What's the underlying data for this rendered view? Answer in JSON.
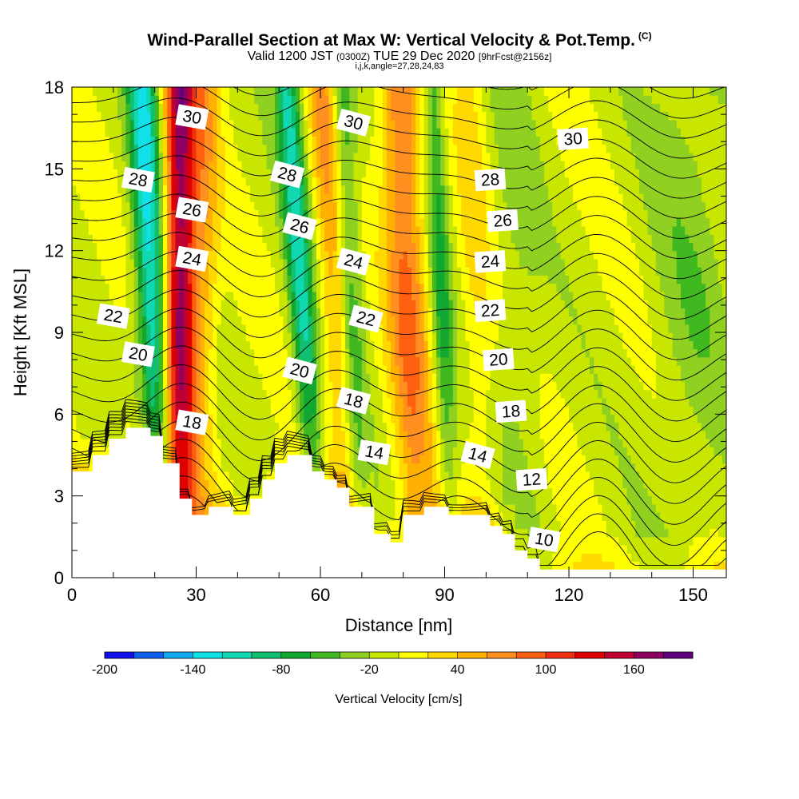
{
  "header": {
    "title": "Wind-Parallel Section at Max W: Vertical Velocity & Pot.Temp.",
    "copyright": "(C)",
    "valid_prefix": "Valid 1200 JST",
    "valid_utc": "(0300Z)",
    "valid_date": "TUE 29 Dec 2020",
    "forecast": "[9hrFcst@2156z]",
    "indices": "i,j,k,angle=27,28,24,83"
  },
  "chart_data": {
    "type": "heatmap",
    "xlabel": "Distance [nm]",
    "ylabel": "Height [Kft MSL]",
    "xlim": [
      0,
      158
    ],
    "ylim": [
      0,
      18
    ],
    "x_ticks": [
      0,
      30,
      60,
      90,
      120,
      150
    ],
    "y_ticks": [
      0,
      3,
      6,
      9,
      12,
      15,
      18
    ],
    "colorbar": {
      "title": "Vertical Velocity [cm/s]",
      "range": [
        -200,
        200
      ],
      "step": 20,
      "tick_labels": [
        "-200",
        "-140",
        "-80",
        "-20",
        "40",
        "100",
        "160"
      ],
      "tick_values": [
        -200,
        -140,
        -80,
        -20,
        40,
        100,
        160
      ],
      "colors": [
        "#1010f0",
        "#1060f0",
        "#10a8f0",
        "#10e0e8",
        "#10d8b0",
        "#10c070",
        "#10a830",
        "#40b820",
        "#90d020",
        "#c8e600",
        "#ffff00",
        "#ffd800",
        "#ffb000",
        "#ff9020",
        "#ff6010",
        "#f03010",
        "#e00000",
        "#c00030",
        "#900060",
        "#600080"
      ]
    },
    "terrain_profile": [
      [
        0,
        3.9
      ],
      [
        5,
        3.9
      ],
      [
        5,
        4.5
      ],
      [
        9,
        4.5
      ],
      [
        9,
        5.1
      ],
      [
        13,
        5.1
      ],
      [
        13,
        5.5
      ],
      [
        19,
        5.5
      ],
      [
        19,
        5.2
      ],
      [
        22,
        5.2
      ],
      [
        22,
        4.2
      ],
      [
        26,
        4.2
      ],
      [
        26,
        2.9
      ],
      [
        29,
        2.9
      ],
      [
        29,
        2.3
      ],
      [
        33,
        2.3
      ],
      [
        33,
        2.6
      ],
      [
        39,
        2.6
      ],
      [
        39,
        2.3
      ],
      [
        43,
        2.3
      ],
      [
        43,
        2.9
      ],
      [
        46,
        2.9
      ],
      [
        46,
        3.6
      ],
      [
        49,
        3.6
      ],
      [
        49,
        4.2
      ],
      [
        52,
        4.2
      ],
      [
        52,
        4.5
      ],
      [
        58,
        4.5
      ],
      [
        58,
        3.9
      ],
      [
        61,
        3.9
      ],
      [
        61,
        3.6
      ],
      [
        64,
        3.6
      ],
      [
        64,
        3.3
      ],
      [
        67,
        3.3
      ],
      [
        67,
        2.6
      ],
      [
        73,
        2.6
      ],
      [
        73,
        1.6
      ],
      [
        77,
        1.6
      ],
      [
        77,
        1.3
      ],
      [
        80,
        1.3
      ],
      [
        80,
        2.3
      ],
      [
        85,
        2.3
      ],
      [
        85,
        2.6
      ],
      [
        91,
        2.6
      ],
      [
        91,
        2.3
      ],
      [
        101,
        2.3
      ],
      [
        101,
        1.9
      ],
      [
        104,
        1.9
      ],
      [
        104,
        1.6
      ],
      [
        107,
        1.6
      ],
      [
        107,
        1.0
      ],
      [
        110,
        1.0
      ],
      [
        110,
        0.7
      ],
      [
        113,
        0.7
      ],
      [
        113,
        0.3
      ],
      [
        158,
        0.3
      ]
    ],
    "theta_contours": {
      "interval_K": 1,
      "labels": [
        {
          "text": "30",
          "x": 29,
          "y": 16.9
        },
        {
          "text": "30",
          "x": 68,
          "y": 16.7
        },
        {
          "text": "30",
          "x": 121,
          "y": 16.1
        },
        {
          "text": "28",
          "x": 16,
          "y": 14.6
        },
        {
          "text": "28",
          "x": 52,
          "y": 14.8
        },
        {
          "text": "28",
          "x": 101,
          "y": 14.6
        },
        {
          "text": "26",
          "x": 29,
          "y": 13.5
        },
        {
          "text": "26",
          "x": 55,
          "y": 12.9
        },
        {
          "text": "26",
          "x": 104,
          "y": 13.1
        },
        {
          "text": "24",
          "x": 29,
          "y": 11.7
        },
        {
          "text": "24",
          "x": 68,
          "y": 11.6
        },
        {
          "text": "24",
          "x": 101,
          "y": 11.6
        },
        {
          "text": "22",
          "x": 10,
          "y": 9.6
        },
        {
          "text": "22",
          "x": 71,
          "y": 9.5
        },
        {
          "text": "22",
          "x": 101,
          "y": 9.8
        },
        {
          "text": "20",
          "x": 16,
          "y": 8.2
        },
        {
          "text": "20",
          "x": 55,
          "y": 7.6
        },
        {
          "text": "20",
          "x": 103,
          "y": 8.0
        },
        {
          "text": "18",
          "x": 29,
          "y": 5.7
        },
        {
          "text": "18",
          "x": 68,
          "y": 6.5
        },
        {
          "text": "18",
          "x": 106,
          "y": 6.1
        },
        {
          "text": "14",
          "x": 73,
          "y": 4.6
        },
        {
          "text": "14",
          "x": 98,
          "y": 4.5
        },
        {
          "text": "12",
          "x": 111,
          "y": 3.6
        },
        {
          "text": "10",
          "x": 114,
          "y": 1.4
        }
      ]
    },
    "velocity_features": [
      {
        "x_base": 26,
        "x_top": 26,
        "peak": 170,
        "width": 3.5
      },
      {
        "x_base": 22,
        "x_top": 17,
        "peak": -120,
        "width": 3.5
      },
      {
        "x_base": 30,
        "x_top": 32,
        "peak": 60,
        "width": 4.0
      },
      {
        "x_base": 60,
        "x_top": 52,
        "peak": -100,
        "width": 3.0
      },
      {
        "x_base": 68,
        "x_top": 61,
        "peak": 70,
        "width": 4.0
      },
      {
        "x_base": 70,
        "x_top": 65,
        "peak": -70,
        "width": 3.0
      },
      {
        "x_base": 84,
        "x_top": 79,
        "peak": 90,
        "width": 5.0
      },
      {
        "x_base": 92,
        "x_top": 87,
        "peak": -60,
        "width": 2.5
      },
      {
        "x_base": 100,
        "x_top": 96,
        "peak": 30,
        "width": 4.0
      },
      {
        "x_base": 110,
        "x_top": 106,
        "peak": -20,
        "width": 6.0
      },
      {
        "x_base": 150,
        "x_top": 150,
        "peak": -25,
        "width": 10.0
      }
    ]
  }
}
